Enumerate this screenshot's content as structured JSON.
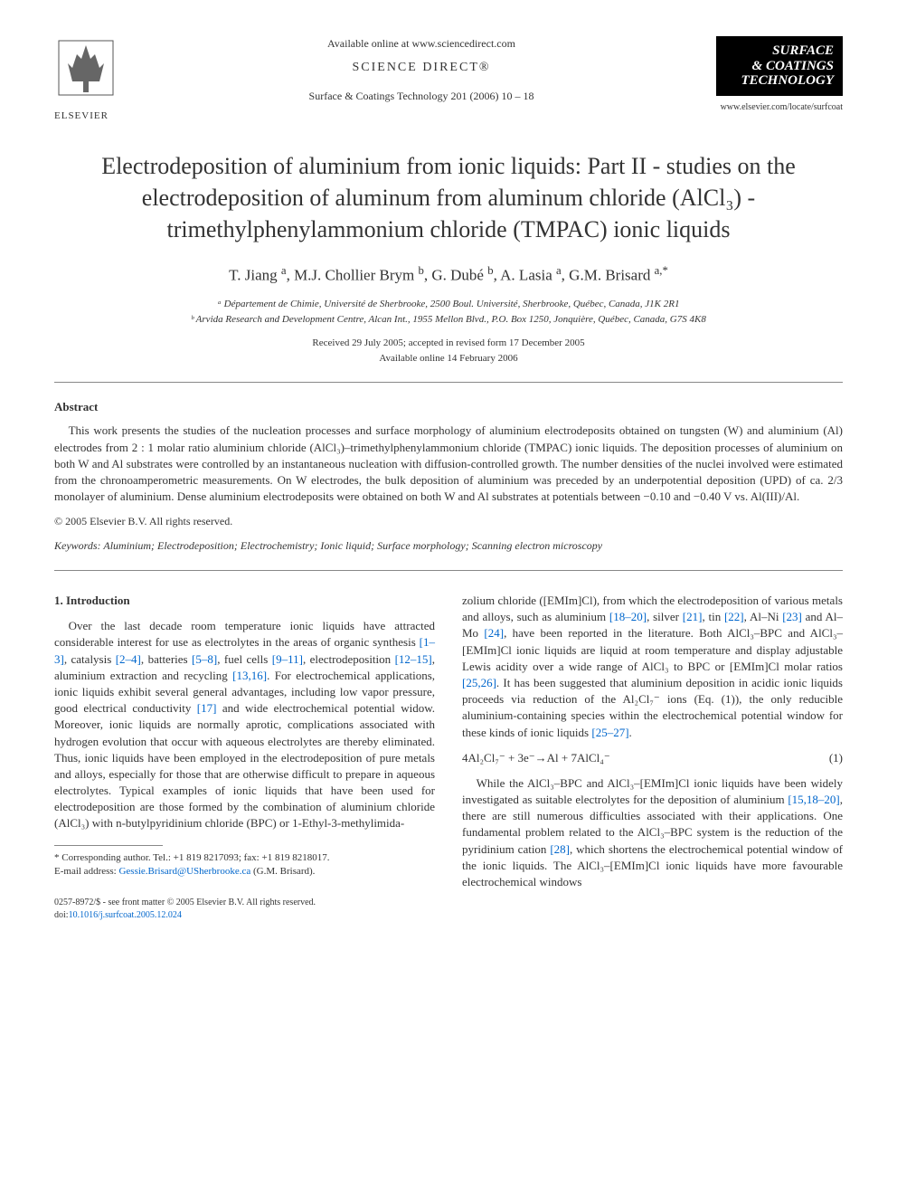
{
  "header": {
    "available_online": "Available online at www.sciencedirect.com",
    "science_direct": "SCIENCE DIRECT®",
    "journal_ref": "Surface & Coatings Technology 201 (2006) 10 – 18",
    "publisher_name": "ELSEVIER",
    "journal_logo_lines": [
      "SURFACE",
      "& COATINGS",
      "TECHNOLOGY"
    ],
    "journal_url": "www.elsevier.com/locate/surfcoat"
  },
  "title": "Electrodeposition of aluminium from ionic liquids: Part II - studies on the electrodeposition of aluminum from aluminum chloride (AlCl₃) - trimethylphenylammonium chloride (TMPAC) ionic liquids",
  "authors_html": "T. Jiang <sup>a</sup>, M.J. Chollier Brym <sup>b</sup>, G. Dubé <sup>b</sup>, A. Lasia <sup>a</sup>, G.M. Brisard <sup>a,*</sup>",
  "affiliations": [
    "ᵃ Département de Chimie, Université de Sherbrooke, 2500 Boul. Université, Sherbrooke, Québec, Canada, J1K 2R1",
    "ᵇ Arvida Research and Development Centre, Alcan Int., 1955 Mellon Blvd., P.O. Box 1250, Jonquière, Québec, Canada, G7S 4K8"
  ],
  "dates": {
    "received": "Received 29 July 2005; accepted in revised form 17 December 2005",
    "online": "Available online 14 February 2006"
  },
  "abstract": {
    "label": "Abstract",
    "text": "This work presents the studies of the nucleation processes and surface morphology of aluminium electrodeposits obtained on tungsten (W) and aluminium (Al) electrodes from 2 : 1 molar ratio aluminium chloride (AlCl₃)–trimethylphenylammonium chloride (TMPAC) ionic liquids. The deposition processes of aluminium on both W and Al substrates were controlled by an instantaneous nucleation with diffusion-controlled growth. The number densities of the nuclei involved were estimated from the chronoamperometric measurements. On W electrodes, the bulk deposition of aluminium was preceded by an underpotential deposition (UPD) of ca. 2/3 monolayer of aluminium. Dense aluminium electrodeposits were obtained on both W and Al substrates at potentials between −0.10 and −0.40 V vs. Al(III)/Al.",
    "copyright": "© 2005 Elsevier B.V. All rights reserved."
  },
  "keywords": {
    "label": "Keywords:",
    "text": "Aluminium; Electrodeposition; Electrochemistry; Ionic liquid; Surface morphology; Scanning electron microscopy"
  },
  "intro": {
    "heading": "1. Introduction",
    "col1_p1_pre": "Over the last decade room temperature ionic liquids have attracted considerable interest for use as electrolytes in the areas of organic synthesis ",
    "refs": {
      "r1_3": "[1–3]",
      "r2_4": "[2–4]",
      "r5_8": "[5–8]",
      "r9_11": "[9–11]",
      "r12_15": "[12–15]",
      "r13_16": "[13,16]",
      "r17": "[17]",
      "r18_20": "[18–20]",
      "r21": "[21]",
      "r22": "[22]",
      "r23": "[23]",
      "r24": "[24]",
      "r25_26": "[25,26]",
      "r25_27": "[25–27]",
      "r15_18_20": "[15,18–20]",
      "r28": "[28]"
    },
    "col1_segments": {
      "s1": ", catalysis ",
      "s2": ", batteries ",
      "s3": ", fuel cells ",
      "s4": ", electrodeposition ",
      "s5": ", aluminium extraction and recycling ",
      "s6": ". For electrochemical applications, ionic liquids exhibit several general advantages, including low vapor pressure, good electrical conductivity ",
      "s7": " and wide electrochemical potential widow. Moreover, ionic liquids are normally aprotic, complications associated with hydrogen evolution that occur with aqueous electrolytes are thereby eliminated. Thus, ionic liquids have been employed in the electrodeposition of pure metals and alloys, especially for those that are otherwise difficult to prepare in aqueous electrolytes. Typical examples of ionic liquids that have been used for electrodeposition are those formed by the combination of aluminium chloride (AlCl₃) with n-butylpyridinium chloride (BPC) or 1-Ethyl-3-methylimida-"
    },
    "col2_segments": {
      "s0": "zolium chloride ([EMIm]Cl), from which the electrodeposition of various metals and alloys, such as aluminium ",
      "s1": ", silver ",
      "s2": ", tin ",
      "s3": ", Al–Ni ",
      "s4": " and Al–Mo ",
      "s5": ", have been reported in the literature. Both AlCl₃–BPC and AlCl₃–[EMIm]Cl ionic liquids are liquid at room temperature and display adjustable Lewis acidity over a wide range of AlCl₃ to BPC or [EMIm]Cl molar ratios ",
      "s6": ". It has been suggested that aluminium deposition in acidic ionic liquids proceeds via reduction of the Al₂Cl₇⁻ ions (Eq. (1)), the only reducible aluminium-containing species within the electrochemical potential window for these kinds of ionic liquids ",
      "s7": "."
    },
    "equation": "4Al₂Cl₇⁻ + 3e⁻→Al + 7AlCl₄⁻",
    "eqnum": "(1)",
    "col2_p2_pre": "While the AlCl₃–BPC and AlCl₃–[EMIm]Cl ionic liquids have been widely investigated as suitable electrolytes for the deposition of aluminium ",
    "col2_p2_mid": ", there are still numerous difficulties associated with their applications. One fundamental problem related to the AlCl₃–BPC system is the reduction of the pyridinium cation ",
    "col2_p2_end": ", which shortens the electrochemical potential window of the ionic liquids. The AlCl₃–[EMIm]Cl ionic liquids have more favourable electrochemical windows"
  },
  "footnote": {
    "corr": "* Corresponding author. Tel.: +1 819 8217093; fax: +1 819 8218017.",
    "email_label": "E-mail address:",
    "email": "Gessie.Brisard@USherbrooke.ca",
    "email_suffix": "(G.M. Brisard)."
  },
  "footer": {
    "issn": "0257-8972/$ - see front matter © 2005 Elsevier B.V. All rights reserved.",
    "doi_label": "doi:",
    "doi": "10.1016/j.surfcoat.2005.12.024"
  },
  "colors": {
    "link": "#0066cc",
    "text": "#333333",
    "rule": "#888888",
    "bg": "#ffffff",
    "logo_bg": "#000000",
    "logo_fg": "#ffffff"
  },
  "typography": {
    "title_pt": 26,
    "body_pt": 13,
    "authors_pt": 17,
    "small_pt": 11,
    "footer_pt": 10
  }
}
